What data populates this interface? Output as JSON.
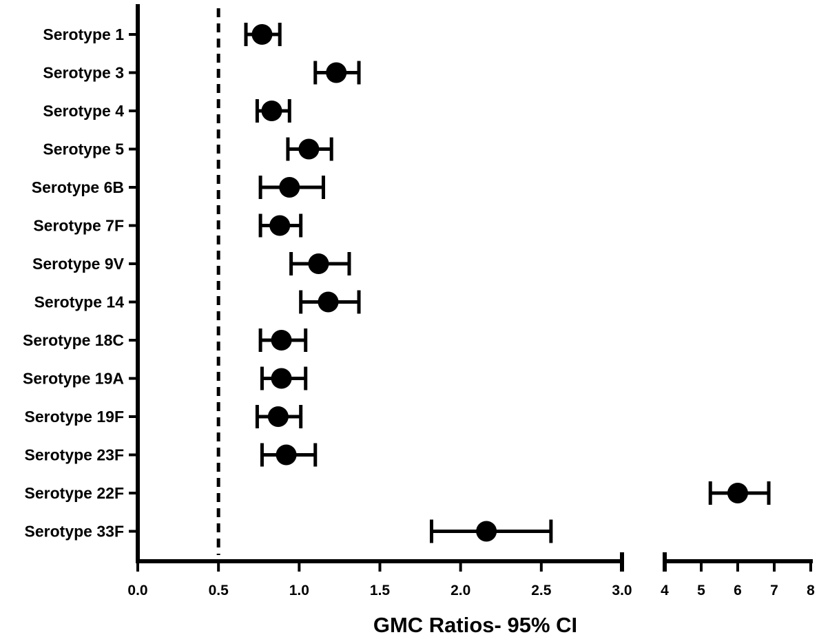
{
  "chart_data": {
    "type": "forest",
    "xlabel": "GMC Ratios- 95% CI",
    "reference_line": 0.5,
    "x_segments": [
      {
        "range": [
          0.0,
          3.0
        ],
        "ticks": [
          "0.0",
          "0.5",
          "1.0",
          "1.5",
          "2.0",
          "2.5",
          "3.0"
        ]
      },
      {
        "range": [
          4,
          8
        ],
        "ticks": [
          "4",
          "5",
          "6",
          "7",
          "8"
        ]
      }
    ],
    "categories": [
      "Serotype 1",
      "Serotype 3",
      "Serotype 4",
      "Serotype 5",
      "Serotype 6B",
      "Serotype 7F",
      "Serotype 9V",
      "Serotype 14",
      "Serotype 18C",
      "Serotype 19A",
      "Serotype 19F",
      "Serotype 23F",
      "Serotype 22F",
      "Serotype 33F"
    ],
    "points": [
      {
        "estimate": 0.77,
        "lower": 0.67,
        "upper": 0.88
      },
      {
        "estimate": 1.23,
        "lower": 1.1,
        "upper": 1.37
      },
      {
        "estimate": 0.83,
        "lower": 0.74,
        "upper": 0.94
      },
      {
        "estimate": 1.06,
        "lower": 0.93,
        "upper": 1.2
      },
      {
        "estimate": 0.94,
        "lower": 0.76,
        "upper": 1.15
      },
      {
        "estimate": 0.88,
        "lower": 0.76,
        "upper": 1.01
      },
      {
        "estimate": 1.12,
        "lower": 0.95,
        "upper": 1.31
      },
      {
        "estimate": 1.18,
        "lower": 1.01,
        "upper": 1.37
      },
      {
        "estimate": 0.89,
        "lower": 0.76,
        "upper": 1.04
      },
      {
        "estimate": 0.89,
        "lower": 0.77,
        "upper": 1.04
      },
      {
        "estimate": 0.87,
        "lower": 0.74,
        "upper": 1.01
      },
      {
        "estimate": 0.92,
        "lower": 0.77,
        "upper": 1.1
      },
      {
        "estimate": 6.0,
        "lower": 5.25,
        "upper": 6.85
      },
      {
        "estimate": 2.16,
        "lower": 1.82,
        "upper": 2.56
      }
    ]
  }
}
